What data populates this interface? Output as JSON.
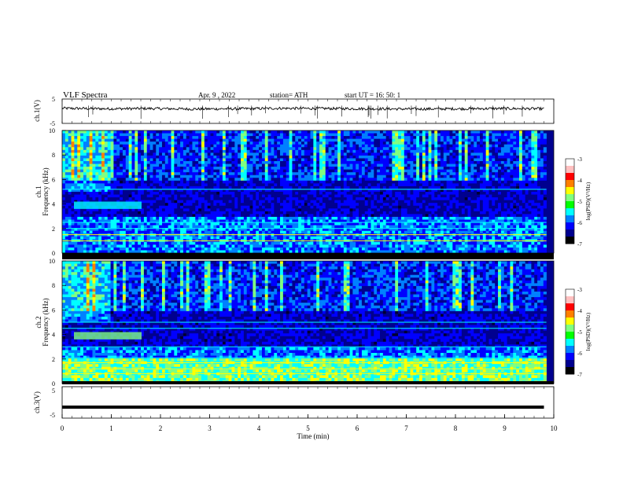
{
  "header": {
    "title": "VLF  Spectra",
    "date": "Apr. 9  , 2022",
    "station": "station= ATH",
    "start": "start  UT  =   16: 50: 1"
  },
  "chart_data": [
    {
      "type": "line",
      "panel": "ch1-waveform",
      "ylabel": "ch.1(V)",
      "y_ticks": [
        "5",
        "-5"
      ],
      "ylim": [
        -5,
        5
      ],
      "series": [
        {
          "values": [
            1.2,
            1.0,
            1.1,
            0.9,
            1.0,
            1.2,
            1.1,
            1.0,
            0.9,
            1.0,
            1.1,
            1.0
          ]
        }
      ],
      "color": "#000000"
    },
    {
      "type": "heatmap",
      "panel": "ch1-spectrogram",
      "ylabel": "ch.1\nFrequency (kHz)",
      "ylim": [
        0,
        10
      ],
      "y_ticks": [
        "0",
        "2",
        "4",
        "6",
        "8",
        "10"
      ],
      "colorbar": {
        "label": "log(PSD)(V²/Hz)",
        "ticks": [
          "-3",
          "-4",
          "-5",
          "-6",
          "-7"
        ],
        "range": [
          -7,
          -3
        ]
      }
    },
    {
      "type": "heatmap",
      "panel": "ch2-spectrogram",
      "ylabel": "ch.2\nFrequency (kHz)",
      "ylim": [
        0,
        10
      ],
      "y_ticks": [
        "0",
        "2",
        "4",
        "6",
        "8",
        "10"
      ],
      "colorbar": {
        "label": "log(PSD)(V²/Hz)",
        "ticks": [
          "-3",
          "-4",
          "-5",
          "-6",
          "-7"
        ],
        "range": [
          -7,
          -3
        ]
      }
    },
    {
      "type": "line",
      "panel": "ch3-waveform",
      "ylabel": "ch.3(V)",
      "y_ticks": [
        "5",
        "-5"
      ],
      "ylim": [
        -5,
        5
      ],
      "series": [
        {
          "values": [
            -1.5,
            -1.5,
            -1.5,
            -1.5,
            -1.5,
            -1.5,
            -1.5,
            -1.5,
            -1.5,
            -1.5,
            -1.5,
            -1.5
          ]
        }
      ],
      "color": "#000000"
    }
  ],
  "x_axis": {
    "label": "Time  (min)",
    "ticks": [
      "0",
      "1",
      "2",
      "3",
      "4",
      "5",
      "6",
      "7",
      "8",
      "9",
      "10"
    ],
    "xlim": [
      0,
      10
    ]
  },
  "colors": {
    "colormap": [
      "#000000",
      "#00008f",
      "#0000ff",
      "#0080ff",
      "#00ffff",
      "#80ff80",
      "#ffff00",
      "#ff8000",
      "#ff0000",
      "#ffffff"
    ]
  }
}
